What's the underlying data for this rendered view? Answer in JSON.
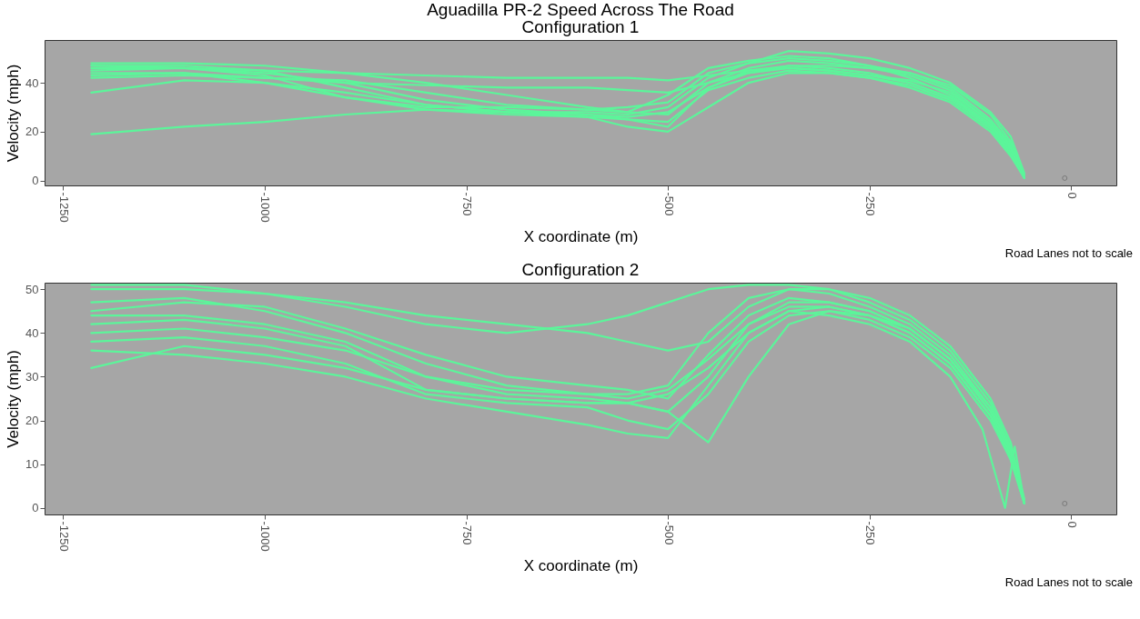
{
  "chart_data": [
    {
      "type": "line",
      "title": "Aguadilla PR-2 Speed Across The Road",
      "subtitle": "Configuration 1",
      "xlabel": "X coordinate (m)",
      "ylabel": "Velocity (mph)",
      "annotations": [
        "Road Lanes not to scale"
      ],
      "x": [
        -1215,
        -1100,
        -1000,
        -900,
        -800,
        -700,
        -600,
        -550,
        -500,
        -450,
        -400,
        -350,
        -300,
        -250,
        -200,
        -150,
        -100,
        -75,
        -58
      ],
      "xlim": [
        -1273,
        56
      ],
      "xticks": [
        -1250,
        -1000,
        -750,
        -500,
        -250,
        0
      ],
      "ylim": [
        -2,
        57.5
      ],
      "yticks": [
        0,
        20,
        40
      ],
      "grid": false,
      "line_style": "solid",
      "series": [
        {
          "color": "#5cf59a",
          "values": [
            47,
            47,
            45,
            38,
            31,
            28,
            28,
            27,
            30,
            42,
            48,
            50,
            49,
            47,
            44,
            38,
            25,
            15,
            2
          ]
        },
        {
          "color": "#5cf59a",
          "values": [
            45,
            46,
            44,
            40,
            33,
            29,
            27,
            26,
            28,
            38,
            45,
            47,
            46,
            44,
            40,
            34,
            22,
            12,
            1
          ]
        },
        {
          "color": "#5cf59a",
          "values": [
            48,
            48,
            47,
            44,
            40,
            35,
            30,
            28,
            27,
            40,
            46,
            49,
            48,
            46,
            43,
            37,
            24,
            14,
            2
          ]
        },
        {
          "color": "#5cf59a",
          "values": [
            43,
            44,
            40,
            34,
            30,
            30,
            29,
            30,
            32,
            44,
            48,
            53,
            52,
            50,
            46,
            40,
            28,
            18,
            3
          ]
        },
        {
          "color": "#5cf59a",
          "values": [
            46,
            46,
            45,
            44,
            43,
            42,
            42,
            42,
            41,
            43,
            45,
            46,
            45,
            43,
            41,
            36,
            24,
            14,
            2
          ]
        },
        {
          "color": "#5cf59a",
          "values": [
            44,
            44,
            42,
            40,
            39,
            38,
            38,
            37,
            36,
            40,
            44,
            47,
            47,
            46,
            44,
            39,
            27,
            16,
            2
          ]
        },
        {
          "color": "#5cf59a",
          "values": [
            19,
            22,
            24,
            27,
            29,
            28,
            27,
            25,
            22,
            38,
            44,
            46,
            45,
            43,
            40,
            34,
            22,
            12,
            1
          ]
        },
        {
          "color": "#5cf59a",
          "values": [
            36,
            41,
            40,
            36,
            31,
            28,
            26,
            22,
            20,
            30,
            40,
            44,
            44,
            42,
            39,
            33,
            21,
            11,
            1
          ]
        },
        {
          "color": "#5cf59a",
          "values": [
            47,
            46,
            43,
            34,
            29,
            27,
            26,
            25,
            24,
            37,
            42,
            45,
            44,
            42,
            38,
            32,
            20,
            10,
            1
          ]
        },
        {
          "color": "#5cf59a",
          "values": [
            42,
            43,
            42,
            41,
            36,
            31,
            29,
            28,
            35,
            46,
            49,
            51,
            50,
            47,
            42,
            35,
            23,
            13,
            2
          ]
        },
        {
          "type": "scatter",
          "marker": "circle",
          "color": "#666666",
          "x": [
            -8
          ],
          "values": [
            1
          ]
        }
      ]
    },
    {
      "type": "line",
      "title": "Configuration 2",
      "xlabel": "X coordinate (m)",
      "ylabel": "Velocity (mph)",
      "annotations": [
        "Road Lanes not to scale"
      ],
      "x": [
        -1215,
        -1100,
        -1000,
        -900,
        -800,
        -700,
        -600,
        -550,
        -500,
        -450,
        -400,
        -350,
        -300,
        -250,
        -200,
        -150,
        -100,
        -75,
        -58
      ],
      "xlim": [
        -1273,
        56
      ],
      "xticks": [
        -1250,
        -1000,
        -750,
        -500,
        -250,
        0
      ],
      "ylim": [
        -1.5,
        51.5
      ],
      "yticks": [
        0,
        10,
        20,
        30,
        40,
        50
      ],
      "grid": false,
      "line_style": "solid",
      "series": [
        {
          "color": "#5cf59a",
          "values": [
            51,
            51,
            49,
            46,
            42,
            40,
            42,
            44,
            47,
            50,
            51,
            51,
            50,
            47,
            43,
            36,
            24,
            14,
            1
          ]
        },
        {
          "color": "#5cf59a",
          "values": [
            47,
            48,
            45,
            40,
            33,
            28,
            26,
            26,
            28,
            40,
            48,
            50,
            49,
            46,
            42,
            35,
            23,
            13,
            1
          ]
        },
        {
          "color": "#5cf59a",
          "values": [
            45,
            47,
            46,
            41,
            35,
            30,
            28,
            27,
            25,
            35,
            44,
            48,
            47,
            45,
            41,
            34,
            22,
            12,
            1
          ]
        },
        {
          "color": "#5cf59a",
          "values": [
            42,
            43,
            41,
            37,
            27,
            25,
            24,
            24,
            22,
            30,
            42,
            46,
            46,
            44,
            40,
            33,
            21,
            12,
            1
          ]
        },
        {
          "color": "#5cf59a",
          "values": [
            38,
            39,
            37,
            33,
            26,
            24,
            23,
            20,
            18,
            26,
            38,
            44,
            45,
            43,
            39,
            32,
            20,
            11,
            1
          ]
        },
        {
          "color": "#5cf59a",
          "x": [
            -1215,
            -1100,
            -1000,
            -900,
            -800,
            -700,
            -600,
            -550,
            -500,
            -450,
            -400,
            -350,
            -300,
            -250,
            -200,
            -150,
            -110,
            -82,
            -70,
            -58
          ],
          "values": [
            36,
            35,
            33,
            30,
            25,
            22,
            19,
            17,
            16,
            28,
            40,
            45,
            44,
            42,
            38,
            30,
            18,
            0,
            14,
            1
          ]
        },
        {
          "color": "#5cf59a",
          "values": [
            32,
            37,
            35,
            32,
            27,
            25,
            24,
            24,
            22,
            15,
            30,
            42,
            45,
            44,
            41,
            34,
            23,
            13,
            1
          ]
        },
        {
          "color": "#5cf59a",
          "values": [
            50,
            50,
            49,
            47,
            44,
            42,
            40,
            38,
            36,
            38,
            46,
            50,
            50,
            48,
            44,
            37,
            25,
            15,
            2
          ]
        },
        {
          "color": "#5cf59a",
          "values": [
            44,
            44,
            42,
            38,
            30,
            27,
            26,
            25,
            27,
            34,
            42,
            47,
            47,
            45,
            41,
            34,
            22,
            12,
            1
          ]
        },
        {
          "color": "#5cf59a",
          "values": [
            40,
            41,
            39,
            36,
            30,
            26,
            25,
            24,
            26,
            32,
            40,
            45,
            46,
            44,
            40,
            33,
            21,
            11,
            1
          ]
        },
        {
          "type": "scatter",
          "marker": "circle",
          "color": "#666666",
          "x": [
            -8
          ],
          "values": [
            1
          ]
        }
      ]
    }
  ]
}
